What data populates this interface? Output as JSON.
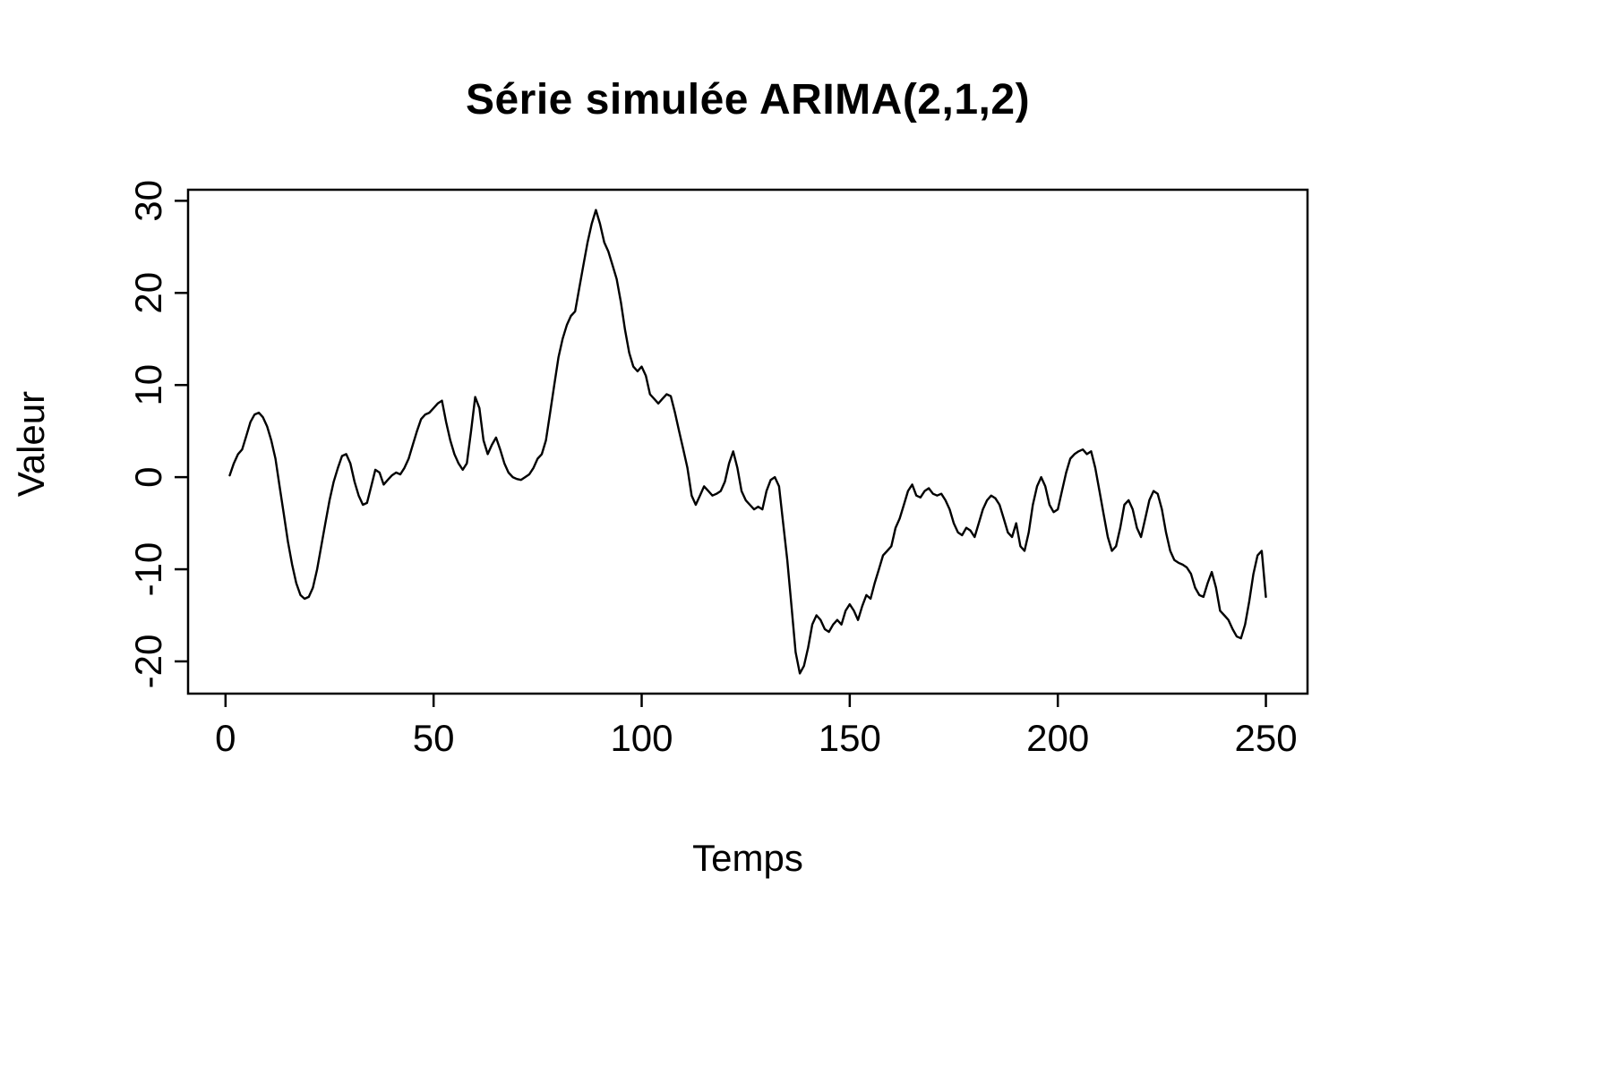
{
  "chart_data": {
    "type": "line",
    "title": "Série simulée ARIMA(2,1,2)",
    "xlabel": "Temps",
    "ylabel": "Valeur",
    "xlim": [
      -9,
      260
    ],
    "ylim": [
      -23.5,
      31.2
    ],
    "x_ticks": [
      0,
      50,
      100,
      150,
      200,
      250
    ],
    "y_ticks": [
      -20,
      -10,
      0,
      10,
      20,
      30
    ],
    "grid": false,
    "legend": "none",
    "line_color": "#000000",
    "background": "#ffffff",
    "n": 250,
    "x_start": 1,
    "x_step": 1,
    "values": [
      0.2,
      1.5,
      2.5,
      3.0,
      4.5,
      6.0,
      6.8,
      7.0,
      6.5,
      5.5,
      4.0,
      2.0,
      -1.0,
      -4.0,
      -7.0,
      -9.5,
      -11.5,
      -12.8,
      -13.2,
      -13.0,
      -12.0,
      -10.0,
      -7.5,
      -5.0,
      -2.5,
      -0.5,
      1.0,
      2.3,
      2.5,
      1.5,
      -0.5,
      -2.0,
      -3.0,
      -2.8,
      -1.0,
      0.8,
      0.5,
      -0.8,
      -0.3,
      0.2,
      0.5,
      0.3,
      1.0,
      2.0,
      3.5,
      5.0,
      6.3,
      6.8,
      7.0,
      7.5,
      8.0,
      8.3,
      6.0,
      4.0,
      2.5,
      1.5,
      0.8,
      1.5,
      5.0,
      8.7,
      7.5,
      4.0,
      2.5,
      3.5,
      4.3,
      3.0,
      1.5,
      0.5,
      0.0,
      -0.2,
      -0.3,
      0.0,
      0.3,
      1.0,
      2.0,
      2.5,
      4.0,
      7.0,
      10.0,
      13.0,
      15.0,
      16.5,
      17.5,
      18.0,
      20.5,
      23.0,
      25.5,
      27.5,
      29.0,
      27.5,
      25.5,
      24.5,
      23.0,
      21.5,
      19.0,
      16.0,
      13.5,
      12.0,
      11.5,
      12.0,
      11.0,
      9.0,
      8.5,
      8.0,
      8.5,
      9.0,
      8.8,
      7.0,
      5.0,
      3.0,
      1.0,
      -2.0,
      -3.0,
      -2.0,
      -1.0,
      -1.5,
      -2.0,
      -1.8,
      -1.5,
      -0.5,
      1.5,
      2.8,
      1.0,
      -1.5,
      -2.5,
      -3.0,
      -3.5,
      -3.2,
      -3.5,
      -1.5,
      -0.3,
      0.0,
      -1.0,
      -5.0,
      -9.0,
      -14.0,
      -19.0,
      -21.3,
      -20.5,
      -18.5,
      -16.0,
      -15.0,
      -15.5,
      -16.5,
      -16.8,
      -16.0,
      -15.5,
      -16.0,
      -14.5,
      -13.8,
      -14.5,
      -15.5,
      -14.0,
      -12.8,
      -13.2,
      -11.5,
      -10.0,
      -8.5,
      -8.0,
      -7.5,
      -5.5,
      -4.5,
      -3.0,
      -1.5,
      -0.8,
      -2.0,
      -2.2,
      -1.5,
      -1.2,
      -1.8,
      -2.0,
      -1.8,
      -2.5,
      -3.5,
      -5.0,
      -6.0,
      -6.3,
      -5.5,
      -5.8,
      -6.5,
      -5.0,
      -3.5,
      -2.5,
      -2.0,
      -2.3,
      -3.0,
      -4.5,
      -6.0,
      -6.5,
      -5.0,
      -7.5,
      -8.0,
      -6.0,
      -3.0,
      -1.0,
      0.0,
      -1.0,
      -3.0,
      -3.8,
      -3.5,
      -1.5,
      0.5,
      2.0,
      2.5,
      2.8,
      3.0,
      2.5,
      2.8,
      1.0,
      -1.5,
      -4.0,
      -6.5,
      -8.0,
      -7.5,
      -5.5,
      -3.0,
      -2.5,
      -3.5,
      -5.5,
      -6.5,
      -4.5,
      -2.5,
      -1.5,
      -1.8,
      -3.5,
      -6.0,
      -8.0,
      -9.0,
      -9.3,
      -9.5,
      -9.8,
      -10.5,
      -12.0,
      -12.8,
      -13.0,
      -11.5,
      -10.3,
      -12.0,
      -14.5,
      -15.0,
      -15.5,
      -16.5,
      -17.3,
      -17.5,
      -16.0,
      -13.5,
      -10.5,
      -8.5,
      -8.0,
      -13.0
    ]
  }
}
